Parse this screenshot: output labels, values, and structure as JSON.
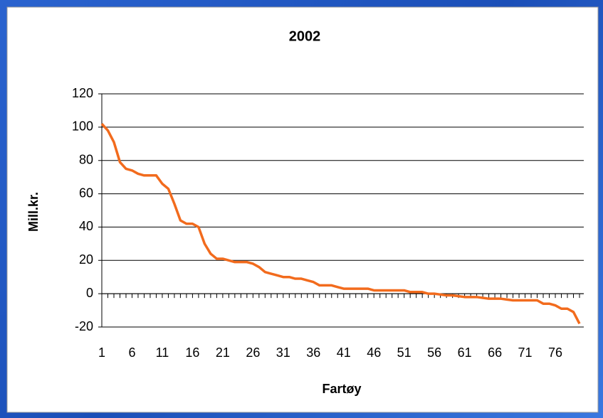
{
  "chart_data": {
    "type": "line",
    "title": "2002",
    "x_label": "Fartøy",
    "y_label": "Mill.kr.",
    "categories": [
      "1",
      null,
      null,
      null,
      null,
      "6",
      null,
      null,
      null,
      null,
      "11",
      null,
      null,
      null,
      null,
      "16",
      null,
      null,
      null,
      null,
      "21",
      null,
      null,
      null,
      null,
      "26",
      null,
      null,
      null,
      null,
      "31",
      null,
      null,
      null,
      null,
      "36",
      null,
      null,
      null,
      null,
      "41",
      null,
      null,
      null,
      null,
      "46",
      null,
      null,
      null,
      null,
      "51",
      null,
      null,
      null,
      null,
      "56",
      null,
      null,
      null,
      null,
      "61",
      null,
      null,
      null,
      null,
      "66",
      null,
      null,
      null,
      null,
      "71",
      null,
      null,
      null,
      null,
      "76",
      null,
      null,
      null,
      null
    ],
    "series": [
      {
        "color": "#f26b1d",
        "values": [
          102,
          98,
          91,
          79,
          75,
          74,
          72,
          71,
          71,
          71,
          66,
          63,
          54,
          44,
          42,
          42,
          40,
          30,
          24,
          21,
          21,
          20,
          19,
          19,
          19,
          18,
          16,
          13,
          12,
          11,
          10,
          10,
          9,
          9,
          8,
          7,
          5,
          5,
          5,
          4,
          3,
          3,
          3,
          3,
          3,
          2,
          2,
          2,
          2,
          2,
          2,
          1,
          1,
          1,
          0,
          0,
          -0.5,
          -1,
          -1,
          -1.5,
          -2,
          -2,
          -2,
          -2.5,
          -3,
          -3,
          -3,
          -3.5,
          -4,
          -4,
          -4,
          -4,
          -4,
          -6,
          -6,
          -7,
          -9,
          -9,
          -11,
          -18
        ]
      }
    ],
    "ylim": [
      -20,
      120
    ],
    "yticks": [
      -20,
      0,
      20,
      40,
      60,
      80,
      100,
      120
    ],
    "grid": true
  }
}
